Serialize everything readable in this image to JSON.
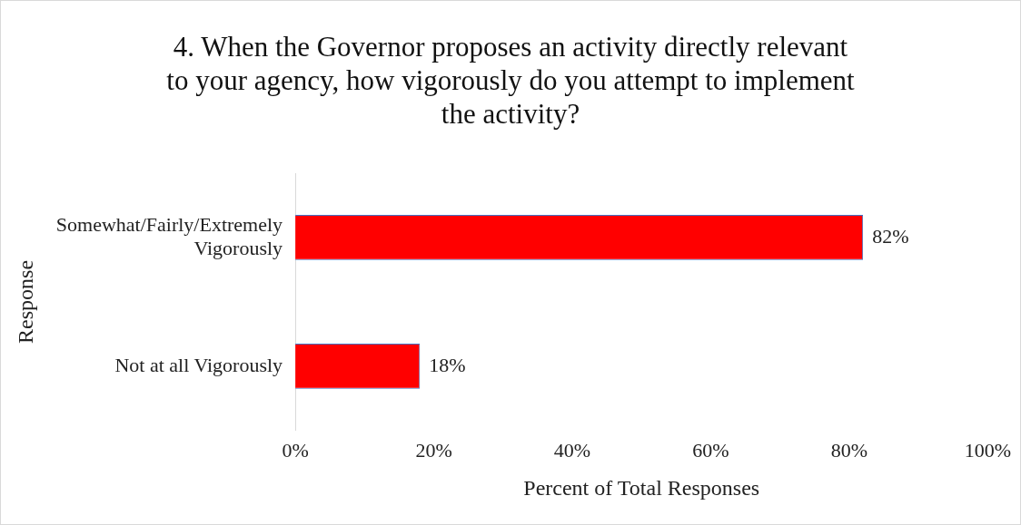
{
  "chart_data": {
    "type": "bar",
    "orientation": "horizontal",
    "title": "4. When the Governor proposes an activity directly relevant to your agency, how vigorously do you attempt to implement the activity?",
    "xlabel": "Percent of Total Responses",
    "ylabel": "Response",
    "categories": [
      "Somewhat/Fairly/Extremely Vigorously",
      "Not at all Vigorously"
    ],
    "values": [
      82,
      18
    ],
    "value_labels": [
      "82%",
      "18%"
    ],
    "color": "#ff0000",
    "xlim": [
      0,
      100
    ],
    "xticks": [
      {
        "value": 0,
        "label": "0%"
      },
      {
        "value": 20,
        "label": "20%"
      },
      {
        "value": 40,
        "label": "40%"
      },
      {
        "value": 60,
        "label": "60%"
      },
      {
        "value": 80,
        "label": "80%"
      },
      {
        "value": 100,
        "label": "100%"
      }
    ],
    "grid": false,
    "legend": false
  }
}
